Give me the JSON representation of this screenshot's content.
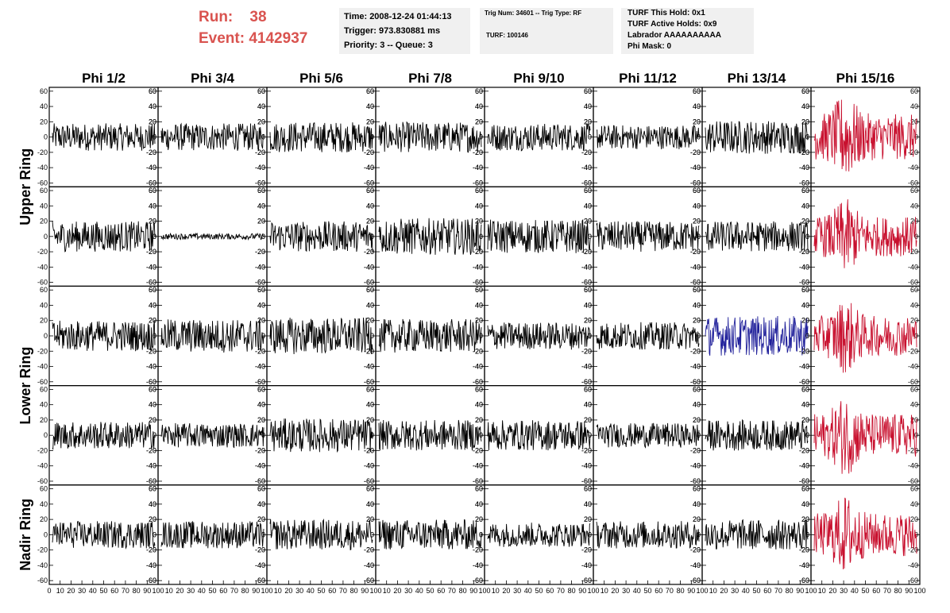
{
  "header": {
    "run_label": "Run:",
    "run_value": "38",
    "event_label": "Event:",
    "event_value": "4142937"
  },
  "info1": {
    "time": "Time: 2008-12-24 01:44:13",
    "trigger": "Trigger: 973.830881 ms",
    "priority": "Priority: 3 -- Queue: 3"
  },
  "info2": {
    "trig": "Trig Num: 34601 -- Trig Type: RF",
    "turf": "TURF: 100146"
  },
  "info3": {
    "hold": "TURF This Hold: 0x1",
    "active": "TURF Active Holds: 0x9",
    "labrador": "Labrador AAAAAAAAAA",
    "phimask": "Phi Mask: 0"
  },
  "chart_data": {
    "type": "line",
    "columns": [
      "Phi 1/2",
      "Phi 3/4",
      "Phi 5/6",
      "Phi 7/8",
      "Phi 9/10",
      "Phi 11/12",
      "Phi 13/14",
      "Phi 15/16"
    ],
    "ring_labels": [
      "Upper Ring",
      "Lower Ring",
      "Nadir Ring"
    ],
    "rows": 5,
    "ylim": [
      -65,
      65
    ],
    "yticks": [
      -60,
      -40,
      -20,
      0,
      20,
      40,
      60
    ],
    "xlim": [
      0,
      100
    ],
    "xtick_labels": [
      "0",
      "10",
      "20",
      "30",
      "40",
      "50",
      "60",
      "70",
      "80",
      "90",
      "100"
    ],
    "colors": {
      "normal": "#000000",
      "red": "#c8102e",
      "blue": "#1f1f9a"
    },
    "amplitude": [
      [
        18,
        18,
        20,
        20,
        18,
        16,
        22,
        30
      ],
      [
        20,
        4,
        20,
        24,
        22,
        20,
        20,
        26
      ],
      [
        20,
        22,
        24,
        22,
        18,
        18,
        26,
        26
      ],
      [
        18,
        16,
        22,
        20,
        20,
        16,
        20,
        28
      ],
      [
        18,
        18,
        20,
        20,
        16,
        18,
        20,
        28
      ]
    ],
    "color_map": [
      [
        "normal",
        "normal",
        "normal",
        "normal",
        "normal",
        "normal",
        "normal",
        "red"
      ],
      [
        "normal",
        "normal",
        "normal",
        "normal",
        "normal",
        "normal",
        "normal",
        "red"
      ],
      [
        "normal",
        "normal",
        "normal",
        "normal",
        "normal",
        "normal",
        "blue",
        "red"
      ],
      [
        "normal",
        "normal",
        "normal",
        "normal",
        "normal",
        "normal",
        "normal",
        "red"
      ],
      [
        "normal",
        "normal",
        "normal",
        "normal",
        "normal",
        "normal",
        "normal",
        "red"
      ]
    ]
  }
}
